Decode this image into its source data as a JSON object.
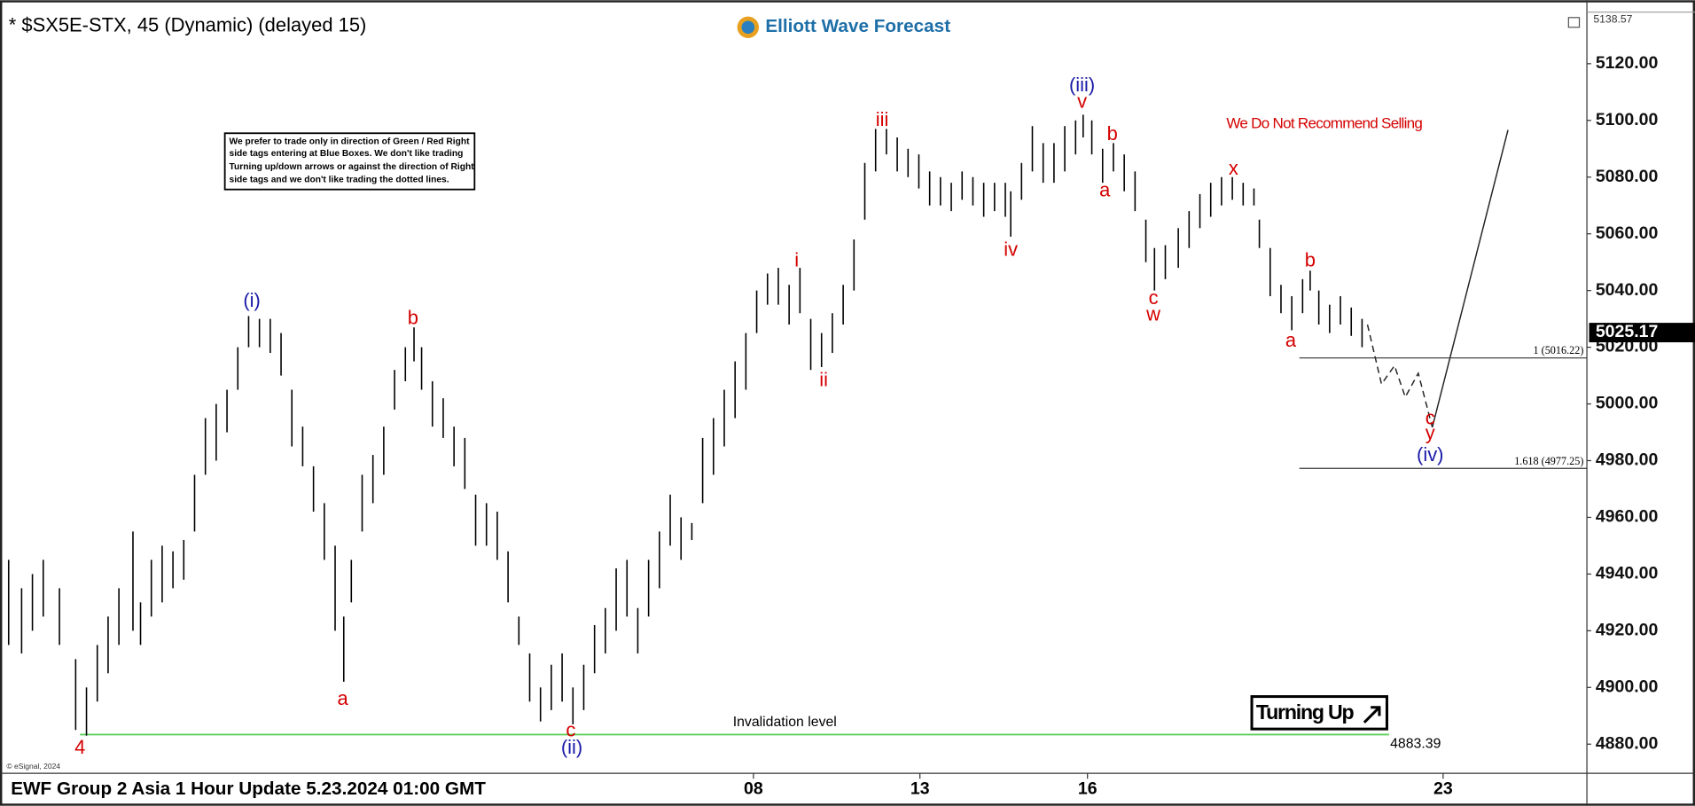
{
  "chart_data": {
    "type": "ohlc",
    "title": "* $SX5E-STX, 45 (Dynamic) (delayed 15)",
    "logo": "Elliott Wave Forecast",
    "footer": "EWF Group 2 Asia 1 Hour Update 5.23.2024 01:00 GMT",
    "copyright": "© eSignal, 2024",
    "badge": "Turning Up",
    "note": [
      "We prefer to trade only in direction of Green / Red Right",
      "side tags entering at Blue Boxes. We don't like trading",
      "Turning up/down arrows or against the direction of Right",
      "side tags and we don't like trading the dotted lines."
    ],
    "x": [
      0.8,
      2,
      3,
      4,
      5.5,
      7,
      8,
      9,
      10,
      11,
      12.3,
      13,
      14,
      15,
      16,
      17,
      18,
      19,
      20,
      21,
      22,
      23,
      24,
      25,
      26,
      27,
      28,
      29,
      30,
      31,
      31.8,
      32.5,
      33.5,
      34.5,
      35.5,
      36.5,
      37.5,
      38.3,
      39,
      40,
      41,
      42,
      43,
      44,
      45,
      46,
      47,
      48,
      49,
      50,
      51,
      52,
      53,
      54,
      55,
      56,
      57,
      58,
      59,
      60,
      61,
      62,
      63,
      64,
      65,
      66,
      67,
      68,
      69,
      70,
      71,
      72,
      73,
      74,
      75,
      76,
      77,
      78,
      79,
      80,
      81,
      82,
      83,
      84,
      85,
      86,
      87,
      88,
      89,
      90,
      91,
      92,
      93,
      93.5,
      94.5,
      95.5,
      96.5,
      97.5,
      98.5,
      99.5,
      100.2,
      101,
      102,
      103,
      104,
      105,
      106,
      106.8,
      107.8,
      109,
      110,
      111,
      112,
      113,
      114,
      115,
      116,
      116.5,
      117.5,
      118.5,
      119.5,
      120.5,
      121.2,
      122,
      123,
      124,
      125,
      126
    ],
    "low": [
      4915,
      4912,
      4920,
      4925,
      4915,
      4885,
      4883,
      4895,
      4905,
      4915,
      4920,
      4915,
      4925,
      4930,
      4935,
      4938,
      4955,
      4975,
      4980,
      4990,
      5005,
      5020,
      5020,
      5018,
      5010,
      4985,
      4978,
      4962,
      4945,
      4920,
      4902,
      4930,
      4955,
      4965,
      4975,
      4998,
      5008,
      5015,
      5005,
      4992,
      4988,
      4978,
      4970,
      4950,
      4950,
      4945,
      4930,
      4915,
      4895,
      4888,
      4892,
      4895,
      4887,
      4892,
      4905,
      4912,
      4920,
      4925,
      4912,
      4925,
      4935,
      4950,
      4945,
      4952,
      4965,
      4975,
      4985,
      4995,
      5005,
      5025,
      5035,
      5035,
      5028,
      5032,
      5012,
      5013,
      5018,
      5028,
      5040,
      5065,
      5082,
      5088,
      5082,
      5080,
      5076,
      5070,
      5070,
      5068,
      5072,
      5070,
      5066,
      5068,
      5066,
      5059,
      5072,
      5082,
      5078,
      5078,
      5082,
      5088,
      5094,
      5088,
      5078,
      5082,
      5075,
      5068,
      5050,
      5040,
      5044,
      5048,
      5055,
      5062,
      5066,
      5070,
      5072,
      5070,
      5070,
      5055,
      5038,
      5032,
      5026,
      5032,
      5040,
      5028,
      5025,
      5028,
      5024,
      5020
    ],
    "high": [
      4945,
      4935,
      4940,
      4945,
      4935,
      4910,
      4900,
      4915,
      4925,
      4935,
      4955,
      4930,
      4945,
      4950,
      4948,
      4952,
      4975,
      4995,
      5000,
      5005,
      5020,
      5031,
      5030,
      5030,
      5025,
      5005,
      4992,
      4978,
      4965,
      4950,
      4925,
      4945,
      4975,
      4982,
      4992,
      5012,
      5020,
      5027,
      5020,
      5008,
      5002,
      4992,
      4988,
      4968,
      4965,
      4962,
      4948,
      4925,
      4912,
      4900,
      4908,
      4912,
      4900,
      4908,
      4922,
      4928,
      4942,
      4945,
      4928,
      4945,
      4955,
      4968,
      4960,
      4958,
      4988,
      4995,
      5005,
      5015,
      5025,
      5040,
      5046,
      5048,
      5042,
      5048,
      5030,
      5025,
      5032,
      5042,
      5058,
      5085,
      5097,
      5097,
      5094,
      5090,
      5088,
      5082,
      5080,
      5078,
      5082,
      5080,
      5078,
      5078,
      5078,
      5075,
      5085,
      5098,
      5092,
      5092,
      5098,
      5100,
      5102,
      5100,
      5090,
      5092,
      5088,
      5082,
      5065,
      5055,
      5056,
      5062,
      5068,
      5074,
      5078,
      5080,
      5080,
      5078,
      5076,
      5065,
      5055,
      5042,
      5038,
      5044,
      5047,
      5040,
      5035,
      5038,
      5034,
      5030
    ],
    "color": "#000000",
    "xlim": [
      0,
      146.8
    ],
    "xticks": [
      {
        "value": 69.7,
        "label": "08"
      },
      {
        "value": 85.1,
        "label": "13"
      },
      {
        "value": 100.6,
        "label": "16"
      },
      {
        "value": 133.5,
        "label": "23"
      }
    ],
    "ylim": [
      4869.71,
      5138.57
    ],
    "yticks": [
      {
        "value": 4880,
        "label": "4880.00"
      },
      {
        "value": 4900,
        "label": "4900.00"
      },
      {
        "value": 4920,
        "label": "4920.00"
      },
      {
        "value": 4940,
        "label": "4940.00"
      },
      {
        "value": 4960,
        "label": "4960.00"
      },
      {
        "value": 4980,
        "label": "4980.00"
      },
      {
        "value": 5000,
        "label": "5000.00"
      },
      {
        "value": 5020,
        "label": "5020.00"
      },
      {
        "value": 5040,
        "label": "5040.00"
      },
      {
        "value": 5060,
        "label": "5060.00"
      },
      {
        "value": 5080,
        "label": "5080.00"
      },
      {
        "value": 5100,
        "label": "5100.00"
      },
      {
        "value": 5120,
        "label": "5120.00"
      }
    ],
    "last_price": 5025.17,
    "fib_levels": [
      {
        "value": 5016.22,
        "label": "1 (5016.22)"
      },
      {
        "value": 4977.25,
        "label": "1.618 (4977.25)"
      }
    ],
    "invalidation": {
      "value": 4883.39,
      "text": "Invalidation level"
    },
    "annotations": [
      {
        "text": "(i)",
        "x": 23.3,
        "y": 5036,
        "color": "#1a1aa8"
      },
      {
        "text": "b",
        "x": 38.2,
        "y": 5030,
        "color": "#d40000"
      },
      {
        "text": "a",
        "x": 31.7,
        "y": 4895.6,
        "color": "#d40000"
      },
      {
        "text": "4",
        "x": 7.4,
        "y": 4878.5,
        "color": "#d40000"
      },
      {
        "text": "c",
        "x": 52.8,
        "y": 4884.6,
        "color": "#d40000"
      },
      {
        "text": "(ii)",
        "x": 52.9,
        "y": 4878.5,
        "color": "#1a1aa8"
      },
      {
        "text": "i",
        "x": 73.7,
        "y": 5050.3,
        "color": "#d40000"
      },
      {
        "text": "ii",
        "x": 76.2,
        "y": 5008,
        "color": "#d40000"
      },
      {
        "text": "iii",
        "x": 81.6,
        "y": 5099.8,
        "color": "#d40000"
      },
      {
        "text": "iv",
        "x": 93.5,
        "y": 5054,
        "color": "#d40000"
      },
      {
        "text": "(iii)",
        "x": 100.1,
        "y": 5112,
        "color": "#1a1aa8"
      },
      {
        "text": "v",
        "x": 100.1,
        "y": 5106.3,
        "color": "#d40000"
      },
      {
        "text": "b",
        "x": 102.9,
        "y": 5094.9,
        "color": "#d40000"
      },
      {
        "text": "a",
        "x": 102.2,
        "y": 5075,
        "color": "#d40000"
      },
      {
        "text": "c",
        "x": 106.7,
        "y": 5037,
        "color": "#d40000"
      },
      {
        "text": "w",
        "x": 106.7,
        "y": 5031.2,
        "color": "#d40000"
      },
      {
        "text": "x",
        "x": 114.1,
        "y": 5082.7,
        "color": "#d40000"
      },
      {
        "text": "b",
        "x": 121.2,
        "y": 5050.3,
        "color": "#d40000"
      },
      {
        "text": "a",
        "x": 119.4,
        "y": 5022,
        "color": "#d40000"
      },
      {
        "text": "c",
        "x": 132.3,
        "y": 4994.7,
        "color": "#d40000"
      },
      {
        "text": "y",
        "x": 132.3,
        "y": 4989.3,
        "color": "#d40000"
      },
      {
        "text": "(iv)",
        "x": 132.3,
        "y": 4981.7,
        "color": "#1a1aa8"
      },
      {
        "text": "We Do Not Recommend Selling",
        "x": 122.5,
        "y": 5098.7,
        "color": "#d40000"
      }
    ]
  }
}
